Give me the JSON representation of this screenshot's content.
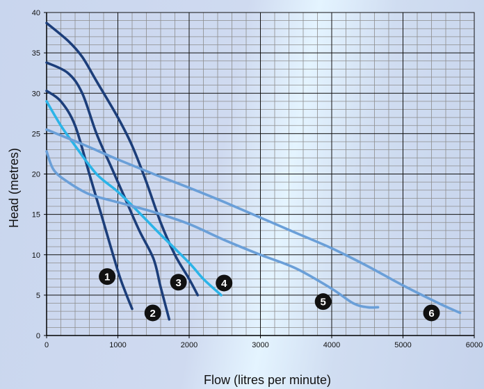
{
  "chart_data": {
    "type": "line",
    "xlabel": "Flow (litres per minute)",
    "ylabel": "Head (metres)",
    "xlim": [
      0,
      6000
    ],
    "ylim": [
      0,
      40
    ],
    "x_ticks": [
      "0",
      "1000",
      "2000",
      "3000",
      "4000",
      "5000",
      "6000"
    ],
    "y_ticks": [
      "0",
      "5",
      "10",
      "15",
      "20",
      "25",
      "30",
      "35",
      "40"
    ],
    "grid": true,
    "colors": {
      "grid_major": "#111111",
      "grid_minor": "#8c8c8c",
      "dark": "#1c3e7a",
      "light": "#6a9fd8",
      "cyan": "#2bb4e8",
      "marker": "#111111"
    },
    "series": [
      {
        "marker": "1",
        "color_key": "dark",
        "label_pos": [
          850,
          7.3
        ],
        "points": [
          [
            0,
            30.3
          ],
          [
            200,
            29
          ],
          [
            400,
            26
          ],
          [
            600,
            20
          ],
          [
            800,
            14
          ],
          [
            1000,
            8
          ],
          [
            1100,
            5.5
          ],
          [
            1200,
            3.3
          ]
        ]
      },
      {
        "marker": "2",
        "color_key": "dark",
        "label_pos": [
          1490,
          2.8
        ],
        "points": [
          [
            0,
            33.8
          ],
          [
            300,
            32.5
          ],
          [
            500,
            30
          ],
          [
            700,
            25
          ],
          [
            900,
            21
          ],
          [
            1100,
            17
          ],
          [
            1300,
            13
          ],
          [
            1500,
            9.5
          ],
          [
            1600,
            6
          ],
          [
            1720,
            2
          ]
        ]
      },
      {
        "marker": "3",
        "color_key": "dark",
        "label_pos": [
          1850,
          6.6
        ],
        "points": [
          [
            0,
            38.7
          ],
          [
            300,
            36.5
          ],
          [
            500,
            34.5
          ],
          [
            700,
            31.5
          ],
          [
            1000,
            27
          ],
          [
            1200,
            23.5
          ],
          [
            1400,
            19
          ],
          [
            1600,
            14
          ],
          [
            1800,
            10
          ],
          [
            2000,
            7
          ],
          [
            2120,
            5
          ]
        ]
      },
      {
        "marker": "4",
        "color_key": "cyan",
        "label_pos": [
          2490,
          6.5
        ],
        "points": [
          [
            0,
            29
          ],
          [
            200,
            26
          ],
          [
            400,
            23.5
          ],
          [
            700,
            20
          ],
          [
            1000,
            17.8
          ],
          [
            1300,
            15.2
          ],
          [
            1600,
            12.5
          ],
          [
            2000,
            9
          ],
          [
            2200,
            7
          ],
          [
            2450,
            5
          ]
        ]
      },
      {
        "marker": "5",
        "color_key": "light",
        "label_pos": [
          3880,
          4.2
        ],
        "points": [
          [
            0,
            22.8
          ],
          [
            100,
            20.5
          ],
          [
            300,
            19
          ],
          [
            600,
            17.5
          ],
          [
            1000,
            16.5
          ],
          [
            1500,
            15.3
          ],
          [
            2000,
            13.8
          ],
          [
            2500,
            11.8
          ],
          [
            3000,
            10
          ],
          [
            3500,
            8.3
          ],
          [
            4000,
            5.8
          ],
          [
            4300,
            4
          ],
          [
            4500,
            3.5
          ],
          [
            4650,
            3.5
          ]
        ]
      },
      {
        "marker": "6",
        "color_key": "light",
        "label_pos": [
          5400,
          2.8
        ],
        "points": [
          [
            0,
            25.5
          ],
          [
            500,
            23.7
          ],
          [
            1000,
            21.8
          ],
          [
            1500,
            20
          ],
          [
            2000,
            18.3
          ],
          [
            2500,
            16.5
          ],
          [
            3000,
            14.6
          ],
          [
            3500,
            12.7
          ],
          [
            4000,
            10.8
          ],
          [
            4500,
            8.6
          ],
          [
            5000,
            6.2
          ],
          [
            5500,
            4
          ],
          [
            5800,
            2.8
          ]
        ]
      }
    ]
  }
}
